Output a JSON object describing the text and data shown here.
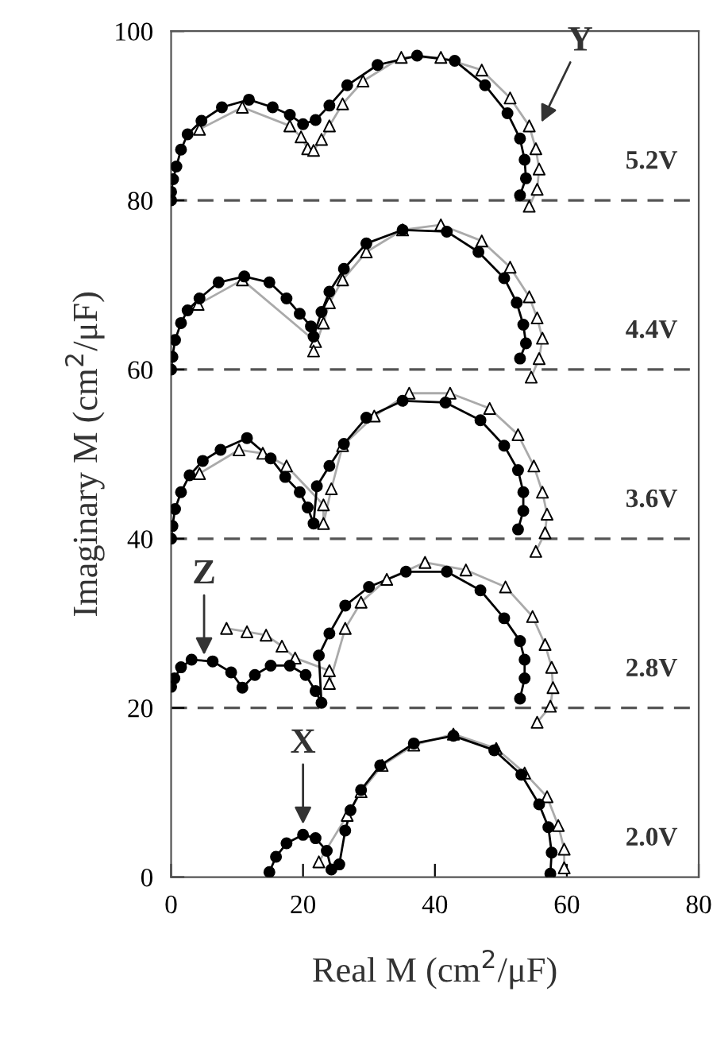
{
  "chart_data": {
    "type": "scatter",
    "xlabel": "Real M (cm$^{2}$/μF)",
    "ylabel": "Imaginary M (cm$^{2}$/μF)",
    "xlim": [
      0,
      80
    ],
    "xticks": [
      0,
      20,
      40,
      60,
      80
    ],
    "ylim": [
      0,
      100
    ],
    "yticks": [
      0,
      20,
      40,
      60,
      80,
      100
    ],
    "grid": false,
    "legend": false,
    "series": [
      {
        "type": "line",
        "color": "#aaaaaa",
        "line_style": "solid",
        "marker": "none",
        "x": [
          4.3,
          10.8,
          18,
          19.7,
          20.7,
          21.6,
          22.8,
          24,
          26,
          29.1,
          34.9,
          40.9,
          47.1,
          51.4,
          54.3,
          55.3,
          55.8,
          55.5,
          54.3,
          null,
          4.1,
          10.8,
          21.9,
          21.6,
          23.1,
          24,
          26,
          29.6,
          35.1,
          40.9,
          47.1,
          51.4,
          54.3,
          55.5,
          56.3,
          55.8,
          54.6,
          null,
          4.3,
          10.3,
          13.9,
          17.5,
          23.1,
          23.1,
          24.3,
          26,
          30.8,
          36.1,
          42.3,
          48.3,
          52.6,
          55,
          56.3,
          57,
          56.7,
          55.3,
          null,
          8.4,
          11.5,
          14.4,
          16.8,
          18.8,
          24,
          24,
          26.4,
          28.8,
          32.7,
          38.5,
          44.7,
          50.7,
          54.8,
          56.7,
          57.7,
          57.9,
          57.5,
          55.5,
          null,
          22.4,
          26.7,
          28.8,
          32,
          36.8,
          42.8,
          49.3,
          53.6,
          57,
          58.7,
          59.6,
          59.6
        ],
        "values": [
          88.4,
          91,
          88.8,
          87.5,
          86.1,
          85.9,
          87.2,
          88.8,
          91.4,
          94.1,
          96.9,
          96.9,
          95.4,
          92.1,
          88.8,
          86.1,
          83.7,
          81.3,
          79.3,
          null,
          67.7,
          70.6,
          63.3,
          62.2,
          65.5,
          67.9,
          70.6,
          73.9,
          76.5,
          77.1,
          75.2,
          72.1,
          68.6,
          66.1,
          63.7,
          61.3,
          59.1,
          null,
          47.7,
          50.5,
          50.1,
          48.6,
          44.0,
          41.8,
          45.9,
          51.0,
          54.5,
          57.2,
          57.2,
          55.4,
          52.3,
          48.6,
          45.5,
          42.9,
          40.7,
          38.5,
          null,
          29.4,
          29.0,
          28.6,
          27.3,
          25.9,
          24.4,
          22.9,
          29.4,
          32.5,
          35.2,
          37.2,
          36.3,
          34.3,
          30.8,
          27.5,
          24.8,
          22.4,
          20.2,
          18.3,
          null,
          1.8,
          7.3,
          10.1,
          13.2,
          15.6,
          16.9,
          15.2,
          12.3,
          9.5,
          6.1,
          3.3,
          1.1
        ]
      },
      {
        "type": "line",
        "color": "#000000",
        "line_style": "solid",
        "marker": "none",
        "x": [
          0,
          0,
          0.3,
          0.8,
          1.5,
          2.5,
          4.6,
          7.7,
          11.8,
          15.4,
          18,
          20,
          21.9,
          24,
          26.7,
          31.3,
          37.3,
          43,
          47.6,
          51,
          52.9,
          53.6,
          53.8,
          52.9,
          null,
          0,
          0.2,
          0.6,
          1.5,
          2.5,
          4.3,
          7.2,
          11.1,
          14.9,
          17.5,
          19.5,
          21.2,
          21.6,
          22.8,
          24,
          26.2,
          29.6,
          35.1,
          41.8,
          46.6,
          50.5,
          52.4,
          53.4,
          53.8,
          52.9,
          null,
          0,
          0.2,
          0.6,
          1.5,
          2.8,
          4.8,
          7.5,
          11.5,
          15.1,
          17.3,
          19.5,
          20.7,
          21.6,
          22.1,
          24,
          26.2,
          29.6,
          35.1,
          41.6,
          46.9,
          50.5,
          52.6,
          53.4,
          53.4,
          52.6,
          null,
          0,
          0.5,
          1.5,
          3.1,
          6.3,
          9.1,
          10.8,
          12.7,
          15.1,
          18,
          20.4,
          21.9,
          22.8,
          22.4,
          24,
          26.4,
          30,
          35.6,
          41.8,
          46.9,
          50.5,
          52.9,
          53.6,
          53.6,
          52.9,
          null,
          14.9,
          15.9,
          17.5,
          20,
          21.9,
          23.6,
          24.3,
          25.5,
          26.4,
          27.2,
          28.8,
          31.7,
          36.8,
          42.8,
          49,
          53.1,
          55.8,
          57.2,
          57.7,
          57.5
        ],
        "values": [
          80,
          81,
          82.5,
          84,
          86,
          87.8,
          89.4,
          91.0,
          91.9,
          91.0,
          90.1,
          89.0,
          89.5,
          91.2,
          93.6,
          96.0,
          97.1,
          96.5,
          93.6,
          90.3,
          87.3,
          84.8,
          82.6,
          80.6,
          null,
          60,
          61.5,
          63.5,
          65.5,
          67,
          68.4,
          70.3,
          71.0,
          70.3,
          68.4,
          66.6,
          65.1,
          63.9,
          66.8,
          69.2,
          71.9,
          74.9,
          76.5,
          76.3,
          73.9,
          70.8,
          67.9,
          65.3,
          63.1,
          61.3,
          null,
          40,
          41.5,
          43.5,
          45.5,
          47.5,
          49.2,
          50.5,
          51.9,
          49.5,
          47.3,
          45.5,
          43.7,
          41.8,
          46.2,
          48.6,
          51.2,
          54.3,
          56.3,
          56.1,
          54.0,
          51.0,
          48.1,
          45.5,
          43.3,
          41.1,
          null,
          22.5,
          23.5,
          24.8,
          25.7,
          25.5,
          24.2,
          22.4,
          23.9,
          25.0,
          25.0,
          23.9,
          22.0,
          20.6,
          26.2,
          28.8,
          32.1,
          34.3,
          36.1,
          36.1,
          33.9,
          30.6,
          27.9,
          25.7,
          23.5,
          21.1,
          null,
          0.6,
          2.4,
          4.0,
          5.0,
          4.6,
          3.1,
          0.9,
          1.5,
          5.5,
          7.9,
          10.3,
          13.2,
          15.8,
          16.7,
          15.0,
          12.1,
          8.6,
          5.9,
          2.9,
          0.4
        ]
      },
      {
        "color": "#000000",
        "marker": "triangle",
        "x": [
          4.3,
          10.8,
          18,
          19.7,
          20.7,
          21.6,
          22.8,
          24,
          26,
          29.1,
          34.9,
          40.9,
          47.1,
          51.4,
          54.3,
          55.3,
          55.8,
          55.5,
          54.3,
          4.1,
          10.8,
          21.9,
          21.6,
          23.1,
          24,
          26,
          29.6,
          35.1,
          40.9,
          47.1,
          51.4,
          54.3,
          55.5,
          56.3,
          55.8,
          54.6,
          4.3,
          10.3,
          13.9,
          17.5,
          23.1,
          23.1,
          24.3,
          26,
          30.8,
          36.1,
          42.3,
          48.3,
          52.6,
          55,
          56.3,
          57,
          56.7,
          55.3,
          8.4,
          11.5,
          14.4,
          16.8,
          18.8,
          24,
          24,
          26.4,
          28.8,
          32.7,
          38.5,
          44.7,
          50.7,
          54.8,
          56.7,
          57.7,
          57.9,
          57.5,
          55.5,
          22.4,
          26.7,
          28.8,
          32,
          36.8,
          42.8,
          49.3,
          53.6,
          57,
          58.7,
          59.6,
          59.6
        ],
        "values": [
          88.4,
          91,
          88.8,
          87.5,
          86.1,
          85.9,
          87.2,
          88.8,
          91.4,
          94.1,
          96.9,
          96.9,
          95.4,
          92.1,
          88.8,
          86.1,
          83.7,
          81.3,
          79.3,
          67.7,
          70.6,
          63.3,
          62.2,
          65.5,
          67.9,
          70.6,
          73.9,
          76.5,
          77.1,
          75.2,
          72.1,
          68.6,
          66.1,
          63.7,
          61.3,
          59.1,
          47.7,
          50.5,
          50.1,
          48.6,
          44.0,
          41.8,
          45.9,
          51.0,
          54.5,
          57.2,
          57.2,
          55.4,
          52.3,
          48.6,
          45.5,
          42.9,
          40.7,
          38.5,
          29.4,
          29.0,
          28.6,
          27.3,
          25.9,
          24.4,
          22.9,
          29.4,
          32.5,
          35.2,
          37.2,
          36.3,
          34.3,
          30.8,
          27.5,
          24.8,
          22.4,
          20.2,
          18.3,
          1.8,
          7.3,
          10.1,
          13.2,
          15.6,
          16.9,
          15.2,
          12.3,
          9.5,
          6.1,
          3.3,
          1.1
        ]
      },
      {
        "color": "#000000",
        "marker": "circle",
        "x": [
          0,
          0,
          0.3,
          0.8,
          1.5,
          2.5,
          4.6,
          7.7,
          11.8,
          15.4,
          18,
          20,
          21.9,
          24,
          26.7,
          31.3,
          37.3,
          43,
          47.6,
          51,
          52.9,
          53.6,
          53.8,
          52.9,
          0,
          0.2,
          0.6,
          1.5,
          2.5,
          4.3,
          7.2,
          11.1,
          14.9,
          17.5,
          19.5,
          21.2,
          21.6,
          22.8,
          24,
          26.2,
          29.6,
          35.1,
          41.8,
          46.6,
          50.5,
          52.4,
          53.4,
          53.8,
          52.9,
          0,
          0.2,
          0.6,
          1.5,
          2.8,
          4.8,
          7.5,
          11.5,
          15.1,
          17.3,
          19.5,
          20.7,
          21.6,
          22.1,
          24,
          26.2,
          29.6,
          35.1,
          41.6,
          46.9,
          50.5,
          52.6,
          53.4,
          53.4,
          52.6,
          0,
          0.5,
          1.5,
          3.1,
          6.3,
          9.1,
          10.8,
          12.7,
          15.1,
          18,
          20.4,
          21.9,
          22.8,
          22.4,
          24,
          26.4,
          30,
          35.6,
          41.8,
          46.9,
          50.5,
          52.9,
          53.6,
          53.6,
          52.9,
          14.9,
          15.9,
          17.5,
          20,
          21.9,
          23.6,
          24.3,
          25.5,
          26.4,
          27.2,
          28.8,
          31.7,
          36.8,
          42.8,
          49,
          53.1,
          55.8,
          57.2,
          57.7,
          57.5
        ],
        "values": [
          80,
          81,
          82.5,
          84,
          86,
          87.8,
          89.4,
          91.0,
          91.9,
          91.0,
          90.1,
          89.0,
          89.5,
          91.2,
          93.6,
          96.0,
          97.1,
          96.5,
          93.6,
          90.3,
          87.3,
          84.8,
          82.6,
          80.6,
          60,
          61.5,
          63.5,
          65.5,
          67,
          68.4,
          70.3,
          71.0,
          70.3,
          68.4,
          66.6,
          65.1,
          63.9,
          66.8,
          69.2,
          71.9,
          74.9,
          76.5,
          76.3,
          73.9,
          70.8,
          67.9,
          65.3,
          63.1,
          61.3,
          40,
          41.5,
          43.5,
          45.5,
          47.5,
          49.2,
          50.5,
          51.9,
          49.5,
          47.3,
          45.5,
          43.7,
          41.8,
          46.2,
          48.6,
          51.2,
          54.3,
          56.3,
          56.1,
          54.0,
          51.0,
          48.1,
          45.5,
          43.3,
          41.1,
          22.5,
          23.5,
          24.8,
          25.7,
          25.5,
          24.2,
          22.4,
          23.9,
          25.0,
          25.0,
          23.9,
          22.0,
          20.6,
          26.2,
          28.8,
          32.1,
          34.3,
          36.1,
          36.1,
          33.9,
          30.6,
          27.9,
          25.7,
          23.5,
          21.1,
          0.6,
          2.4,
          4.0,
          5.0,
          4.6,
          3.1,
          0.9,
          1.5,
          5.5,
          7.9,
          10.3,
          13.2,
          15.8,
          16.7,
          15.0,
          12.1,
          8.6,
          5.9,
          2.9,
          0.4
        ]
      }
    ],
    "ref_lines": [
      {
        "axis": "y",
        "value": 80,
        "label": "5.2V",
        "line_style": "dashed",
        "color": "#555555"
      },
      {
        "axis": "y",
        "value": 60,
        "label": "4.4V",
        "line_style": "dashed",
        "color": "#555555"
      },
      {
        "axis": "y",
        "value": 40,
        "label": "3.6V",
        "line_style": "dashed",
        "color": "#555555"
      },
      {
        "axis": "y",
        "value": 20,
        "label": "2.8V",
        "line_style": "dashed",
        "color": "#555555"
      }
    ],
    "annotations": [
      "2.0V",
      {
        "text": "Y",
        "x": 56,
        "y": 89
      },
      {
        "text": "Z",
        "x": 5,
        "y": 26
      },
      {
        "text": "X",
        "x": 20,
        "y": 6
      }
    ]
  }
}
